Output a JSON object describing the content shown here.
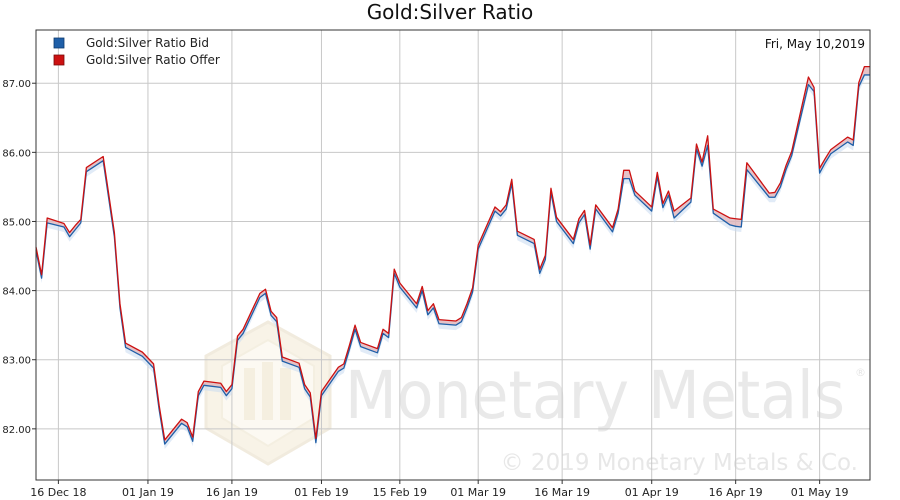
{
  "watermark": {
    "logo_text": "Monetary Metals",
    "registered_mark": "®",
    "copyright": "© 2019 Monetary Metals & Co."
  },
  "chart_data": {
    "type": "line",
    "title": "Gold:Silver Ratio",
    "date_label": "Fri, May 10,2019",
    "xlabel": "",
    "ylabel": "",
    "x_tick_labels": [
      "16 Dec 18",
      "01 Jan 19",
      "16 Jan 19",
      "01 Feb 19",
      "15 Feb 19",
      "01 Mar 19",
      "16 Mar 19",
      "01 Apr 19",
      "16 Apr 19",
      "01 May 19"
    ],
    "x_tick_dates": [
      "2018-12-16",
      "2019-01-01",
      "2019-01-16",
      "2019-02-01",
      "2019-02-15",
      "2019-03-01",
      "2019-03-16",
      "2019-04-01",
      "2019-04-16",
      "2019-05-01"
    ],
    "x_range": [
      "2018-12-12",
      "2019-05-10"
    ],
    "y_tick_values": [
      82,
      83,
      84,
      85,
      86,
      87
    ],
    "y_tick_labels": [
      "82.00",
      "83.00",
      "84.00",
      "85.00",
      "86.00",
      "87.00"
    ],
    "ylim": [
      81.26,
      87.77
    ],
    "grid": true,
    "legend_position": "top-left",
    "colors": {
      "bid": "#1f5fa8",
      "offer": "#cc1111",
      "band": "#c8daf0",
      "grid": "#c8c8c8"
    },
    "series": [
      {
        "name": "Gold:Silver Ratio Bid",
        "x": [
          "2018-12-12",
          "2018-12-13",
          "2018-12-14",
          "2018-12-17",
          "2018-12-18",
          "2018-12-19",
          "2018-12-20",
          "2018-12-21",
          "2018-12-24",
          "2018-12-26",
          "2018-12-27",
          "2018-12-28",
          "2018-12-31",
          "2019-01-02",
          "2019-01-03",
          "2019-01-04",
          "2019-01-07",
          "2019-01-08",
          "2019-01-09",
          "2019-01-10",
          "2019-01-11",
          "2019-01-14",
          "2019-01-15",
          "2019-01-16",
          "2019-01-17",
          "2019-01-18",
          "2019-01-21",
          "2019-01-22",
          "2019-01-23",
          "2019-01-24",
          "2019-01-25",
          "2019-01-28",
          "2019-01-29",
          "2019-01-30",
          "2019-01-31",
          "2019-02-01",
          "2019-02-04",
          "2019-02-05",
          "2019-02-06",
          "2019-02-07",
          "2019-02-08",
          "2019-02-11",
          "2019-02-12",
          "2019-02-13",
          "2019-02-14",
          "2019-02-15",
          "2019-02-18",
          "2019-02-19",
          "2019-02-20",
          "2019-02-21",
          "2019-02-22",
          "2019-02-25",
          "2019-02-26",
          "2019-02-27",
          "2019-02-28",
          "2019-03-01",
          "2019-03-04",
          "2019-03-05",
          "2019-03-06",
          "2019-03-07",
          "2019-03-08",
          "2019-03-11",
          "2019-03-12",
          "2019-03-13",
          "2019-03-14",
          "2019-03-15",
          "2019-03-18",
          "2019-03-19",
          "2019-03-20",
          "2019-03-21",
          "2019-03-22",
          "2019-03-25",
          "2019-03-26",
          "2019-03-27",
          "2019-03-28",
          "2019-03-29",
          "2019-04-01",
          "2019-04-02",
          "2019-04-03",
          "2019-04-04",
          "2019-04-05",
          "2019-04-08",
          "2019-04-09",
          "2019-04-10",
          "2019-04-11",
          "2019-04-12",
          "2019-04-15",
          "2019-04-16",
          "2019-04-17",
          "2019-04-18",
          "2019-04-22",
          "2019-04-23",
          "2019-04-24",
          "2019-04-25",
          "2019-04-26",
          "2019-04-29",
          "2019-04-30",
          "2019-05-01",
          "2019-05-02",
          "2019-05-03",
          "2019-05-06",
          "2019-05-07",
          "2019-05-08",
          "2019-05-09",
          "2019-05-10"
        ],
        "values": [
          84.58,
          84.18,
          84.98,
          84.92,
          84.78,
          84.88,
          84.98,
          85.72,
          85.88,
          84.78,
          83.75,
          83.18,
          83.05,
          82.88,
          82.28,
          81.78,
          82.08,
          82.03,
          81.82,
          82.48,
          82.63,
          82.6,
          82.48,
          82.58,
          83.28,
          83.38,
          83.9,
          83.96,
          83.64,
          83.55,
          82.98,
          82.89,
          82.58,
          82.46,
          81.8,
          82.48,
          82.83,
          82.88,
          83.15,
          83.44,
          83.19,
          83.1,
          83.38,
          83.32,
          84.25,
          84.05,
          83.75,
          84.0,
          83.65,
          83.75,
          83.52,
          83.5,
          83.55,
          83.75,
          83.98,
          84.6,
          85.15,
          85.08,
          85.18,
          85.55,
          84.8,
          84.68,
          84.25,
          84.45,
          85.42,
          85.0,
          84.68,
          84.98,
          85.1,
          84.6,
          85.18,
          84.85,
          85.12,
          85.62,
          85.62,
          85.38,
          85.15,
          85.65,
          85.2,
          85.38,
          85.05,
          85.28,
          86.05,
          85.8,
          86.1,
          85.12,
          84.95,
          84.93,
          84.92,
          85.75,
          85.35,
          85.35,
          85.5,
          85.75,
          85.95,
          86.98,
          86.88,
          85.7,
          85.85,
          85.98,
          86.15,
          86.1,
          86.95,
          87.12,
          87.12
        ]
      },
      {
        "name": "Gold:Silver Ratio Offer",
        "x": [
          "2018-12-12",
          "2018-12-13",
          "2018-12-14",
          "2018-12-17",
          "2018-12-18",
          "2018-12-19",
          "2018-12-20",
          "2018-12-21",
          "2018-12-24",
          "2018-12-26",
          "2018-12-27",
          "2018-12-28",
          "2018-12-31",
          "2019-01-02",
          "2019-01-03",
          "2019-01-04",
          "2019-01-07",
          "2019-01-08",
          "2019-01-09",
          "2019-01-10",
          "2019-01-11",
          "2019-01-14",
          "2019-01-15",
          "2019-01-16",
          "2019-01-17",
          "2019-01-18",
          "2019-01-21",
          "2019-01-22",
          "2019-01-23",
          "2019-01-24",
          "2019-01-25",
          "2019-01-28",
          "2019-01-29",
          "2019-01-30",
          "2019-01-31",
          "2019-02-01",
          "2019-02-04",
          "2019-02-05",
          "2019-02-06",
          "2019-02-07",
          "2019-02-08",
          "2019-02-11",
          "2019-02-12",
          "2019-02-13",
          "2019-02-14",
          "2019-02-15",
          "2019-02-18",
          "2019-02-19",
          "2019-02-20",
          "2019-02-21",
          "2019-02-22",
          "2019-02-25",
          "2019-02-26",
          "2019-02-27",
          "2019-02-28",
          "2019-03-01",
          "2019-03-04",
          "2019-03-05",
          "2019-03-06",
          "2019-03-07",
          "2019-03-08",
          "2019-03-11",
          "2019-03-12",
          "2019-03-13",
          "2019-03-14",
          "2019-03-15",
          "2019-03-18",
          "2019-03-19",
          "2019-03-20",
          "2019-03-21",
          "2019-03-22",
          "2019-03-25",
          "2019-03-26",
          "2019-03-27",
          "2019-03-28",
          "2019-03-29",
          "2019-04-01",
          "2019-04-02",
          "2019-04-03",
          "2019-04-04",
          "2019-04-05",
          "2019-04-08",
          "2019-04-09",
          "2019-04-10",
          "2019-04-11",
          "2019-04-12",
          "2019-04-15",
          "2019-04-16",
          "2019-04-17",
          "2019-04-18",
          "2019-04-22",
          "2019-04-23",
          "2019-04-24",
          "2019-04-25",
          "2019-04-26",
          "2019-04-29",
          "2019-04-30",
          "2019-05-01",
          "2019-05-02",
          "2019-05-03",
          "2019-05-06",
          "2019-05-07",
          "2019-05-08",
          "2019-05-09",
          "2019-05-10"
        ],
        "values": [
          84.63,
          84.23,
          85.05,
          84.97,
          84.84,
          84.94,
          85.03,
          85.78,
          85.94,
          84.84,
          83.81,
          83.24,
          83.11,
          82.94,
          82.34,
          81.84,
          82.14,
          82.09,
          81.88,
          82.54,
          82.69,
          82.66,
          82.54,
          82.64,
          83.34,
          83.44,
          83.96,
          84.02,
          83.7,
          83.61,
          83.04,
          82.95,
          82.64,
          82.52,
          81.86,
          82.54,
          82.89,
          82.94,
          83.21,
          83.5,
          83.25,
          83.16,
          83.44,
          83.38,
          84.31,
          84.11,
          83.81,
          84.06,
          83.71,
          83.81,
          83.58,
          83.56,
          83.61,
          83.81,
          84.04,
          84.66,
          85.21,
          85.14,
          85.24,
          85.61,
          84.86,
          84.74,
          84.31,
          84.51,
          85.48,
          85.06,
          84.74,
          85.04,
          85.16,
          84.66,
          85.24,
          84.91,
          85.18,
          85.74,
          85.74,
          85.44,
          85.21,
          85.71,
          85.26,
          85.44,
          85.15,
          85.34,
          86.12,
          85.86,
          86.24,
          85.18,
          85.05,
          85.04,
          85.03,
          85.85,
          85.41,
          85.42,
          85.56,
          85.81,
          86.01,
          87.09,
          86.94,
          85.77,
          85.91,
          86.04,
          86.22,
          86.18,
          87.01,
          87.24,
          87.24
        ]
      }
    ]
  }
}
